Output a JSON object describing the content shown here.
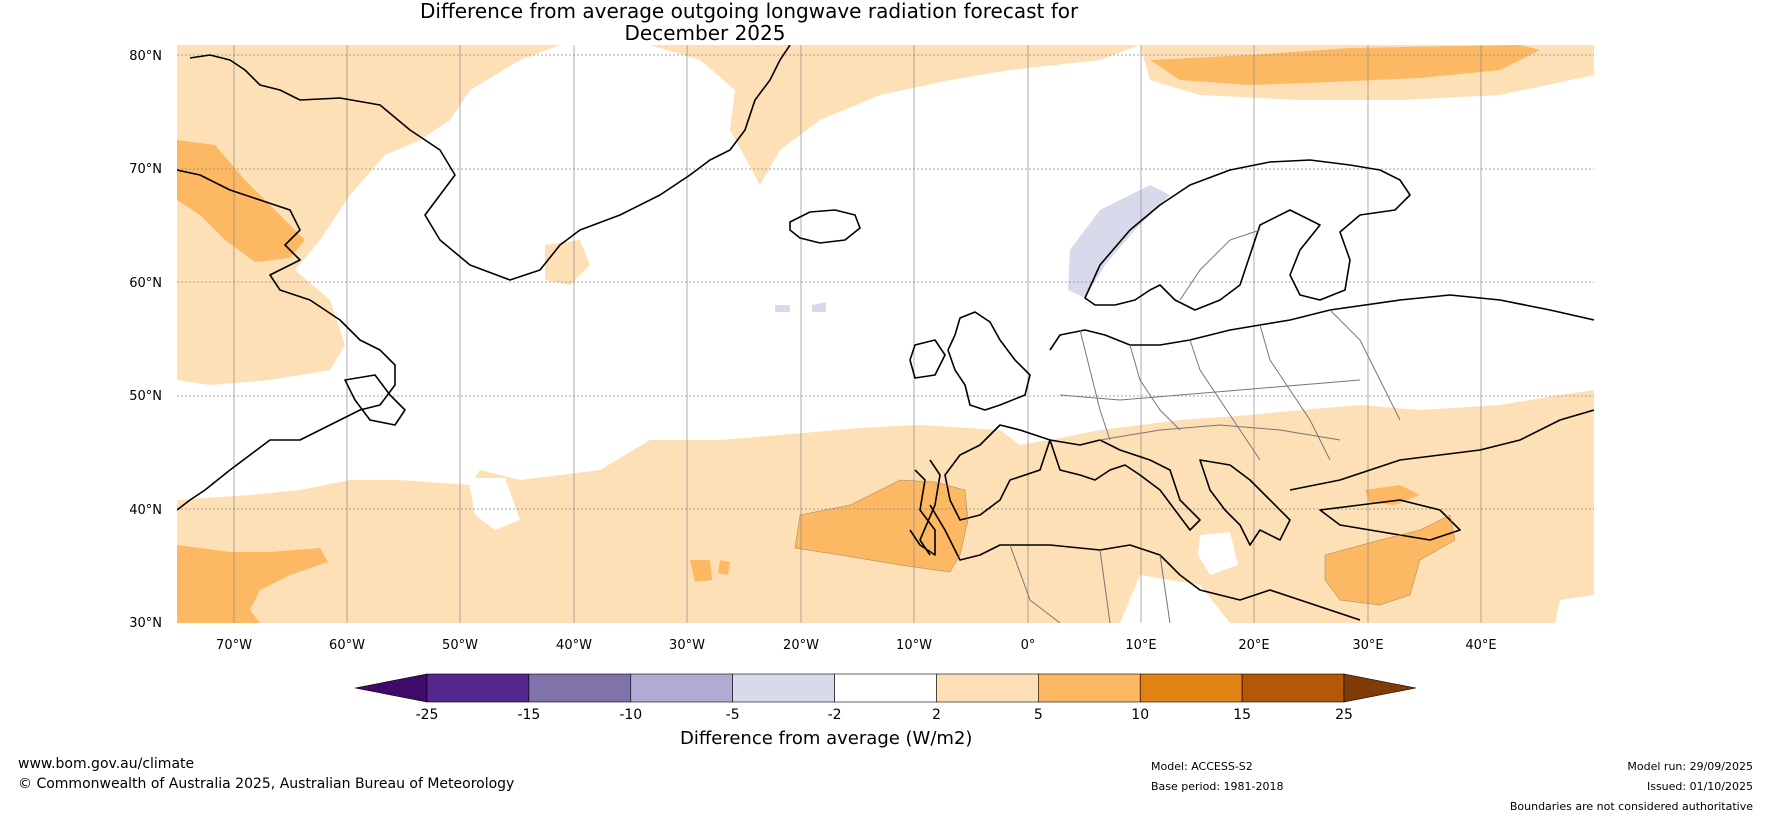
{
  "title": {
    "line1": "Difference from average outgoing longwave radiation forecast for",
    "line2": "December 2025"
  },
  "map": {
    "lat_labels": [
      "80°N",
      "70°N",
      "60°N",
      "50°N",
      "40°N",
      "30°N"
    ],
    "lon_labels": [
      "70°W",
      "60°W",
      "50°W",
      "40°W",
      "30°W",
      "20°W",
      "10°W",
      "0°",
      "10°E",
      "20°E",
      "30°E",
      "40°E"
    ],
    "lat_range": [
      30,
      81
    ],
    "lon_range": [
      -75,
      50
    ]
  },
  "colorbar": {
    "ticks": [
      "-25",
      "-15",
      "-10",
      "-5",
      "-2",
      "2",
      "5",
      "10",
      "15",
      "25"
    ],
    "colors": [
      "#3f0a6a",
      "#54278f",
      "#8073ac",
      "#b2abd2",
      "#d8daeb",
      "#ffffff",
      "#fee0b6",
      "#fdb863",
      "#e08214",
      "#b35806",
      "#7f3b08"
    ],
    "title": "Difference from average (W/m2)"
  },
  "footer": {
    "url": "www.bom.gov.au/climate",
    "copyright": "© Commonwealth of Australia 2025, Australian Bureau of Meteorology",
    "model": "Model: ACCESS-S2",
    "base_period": "Base period: 1981-2018",
    "model_run": "Model run: 29/09/2025",
    "issued": "Issued: 01/10/2025",
    "disclaimer": "Boundaries are not considered authoritative"
  }
}
